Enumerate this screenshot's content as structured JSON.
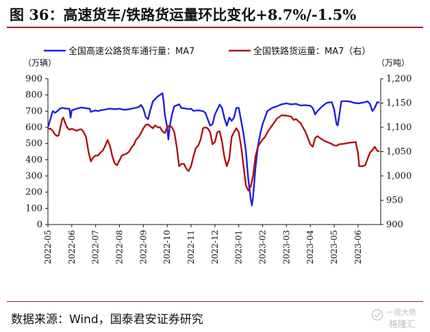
{
  "title": "图 36：高速货车/铁路货运量环比变化+8.7%/-1.5%",
  "source": "数据来源：Wind，国泰君安证券研究",
  "watermark": {
    "line1": "一观大势",
    "line2": "格隆汇"
  },
  "colors": {
    "highway": "#1f1fe0",
    "rail": "#b01010",
    "title_rule": "#9a1b1b"
  },
  "chart_data": {
    "type": "line",
    "legend": {
      "placement": "top",
      "entries": [
        "全国高速公路货车通行量：MA7",
        "全国铁路货运量：MA7（右）"
      ]
    },
    "left_unit": "（万辆）",
    "right_unit": "（万吨）",
    "y_left": {
      "min": 0,
      "max": 900,
      "ticks": [
        0,
        100,
        200,
        300,
        400,
        500,
        600,
        700,
        800,
        900
      ]
    },
    "y_right": {
      "min": 900,
      "max": 1200,
      "ticks": [
        900,
        950,
        1000,
        1050,
        1100,
        1150,
        1200
      ]
    },
    "x_categories": [
      "2022-05",
      "2022-06",
      "2022-07",
      "2022-08",
      "2022-09",
      "2022-10",
      "2022-11",
      "2022-12",
      "2023-01",
      "2023-02",
      "2023-03",
      "2023-04",
      "2023-05",
      "2023-06"
    ],
    "x_range": [
      0,
      13.95
    ],
    "grid": false,
    "series": [
      {
        "name": "全国高速公路货车通行量：MA7",
        "axis": "left",
        "color": "#1f1fe0",
        "points": [
          [
            0.0,
            600
          ],
          [
            0.1,
            650
          ],
          [
            0.2,
            700
          ],
          [
            0.3,
            690
          ],
          [
            0.4,
            700
          ],
          [
            0.5,
            715
          ],
          [
            0.6,
            720
          ],
          [
            0.8,
            715
          ],
          [
            0.9,
            715
          ],
          [
            0.95,
            660
          ],
          [
            1.0,
            705
          ],
          [
            1.1,
            710
          ],
          [
            1.2,
            715
          ],
          [
            1.4,
            722
          ],
          [
            1.6,
            718
          ],
          [
            1.75,
            715
          ],
          [
            1.8,
            695
          ],
          [
            1.9,
            700
          ],
          [
            2.0,
            705
          ],
          [
            2.1,
            700
          ],
          [
            2.2,
            705
          ],
          [
            2.4,
            710
          ],
          [
            2.6,
            715
          ],
          [
            2.8,
            712
          ],
          [
            3.0,
            715
          ],
          [
            3.2,
            708
          ],
          [
            3.4,
            712
          ],
          [
            3.6,
            718
          ],
          [
            3.8,
            725
          ],
          [
            3.9,
            738
          ],
          [
            4.0,
            715
          ],
          [
            4.1,
            665
          ],
          [
            4.2,
            650
          ],
          [
            4.3,
            710
          ],
          [
            4.4,
            760
          ],
          [
            4.6,
            790
          ],
          [
            4.8,
            810
          ],
          [
            4.85,
            760
          ],
          [
            4.9,
            680
          ],
          [
            5.0,
            600
          ],
          [
            5.05,
            525
          ],
          [
            5.1,
            600
          ],
          [
            5.2,
            680
          ],
          [
            5.3,
            730
          ],
          [
            5.5,
            742
          ],
          [
            5.6,
            718
          ],
          [
            5.7,
            718
          ],
          [
            5.9,
            712
          ],
          [
            6.0,
            715
          ],
          [
            6.1,
            702
          ],
          [
            6.3,
            705
          ],
          [
            6.5,
            700
          ],
          [
            6.6,
            690
          ],
          [
            6.8,
            610
          ],
          [
            6.9,
            620
          ],
          [
            7.0,
            680
          ],
          [
            7.2,
            740
          ],
          [
            7.3,
            720
          ],
          [
            7.4,
            655
          ],
          [
            7.5,
            610
          ],
          [
            7.6,
            660
          ],
          [
            7.7,
            640
          ],
          [
            7.8,
            660
          ],
          [
            7.9,
            720
          ],
          [
            8.0,
            720
          ],
          [
            8.1,
            640
          ],
          [
            8.2,
            560
          ],
          [
            8.3,
            450
          ],
          [
            8.4,
            280
          ],
          [
            8.5,
            160
          ],
          [
            8.55,
            118
          ],
          [
            8.6,
            170
          ],
          [
            8.7,
            350
          ],
          [
            8.8,
            480
          ],
          [
            8.9,
            560
          ],
          [
            9.0,
            620
          ],
          [
            9.1,
            660
          ],
          [
            9.2,
            700
          ],
          [
            9.4,
            720
          ],
          [
            9.6,
            730
          ],
          [
            9.8,
            742
          ],
          [
            10.0,
            748
          ],
          [
            10.2,
            742
          ],
          [
            10.4,
            745
          ],
          [
            10.6,
            735
          ],
          [
            10.8,
            737
          ],
          [
            11.0,
            733
          ],
          [
            11.1,
            720
          ],
          [
            11.2,
            680
          ],
          [
            11.3,
            700
          ],
          [
            11.5,
            730
          ],
          [
            11.7,
            752
          ],
          [
            11.9,
            755
          ],
          [
            12.0,
            710
          ],
          [
            12.1,
            620
          ],
          [
            12.15,
            612
          ],
          [
            12.2,
            660
          ],
          [
            12.3,
            760
          ],
          [
            12.5,
            762
          ],
          [
            12.7,
            758
          ],
          [
            12.8,
            752
          ],
          [
            13.0,
            748
          ],
          [
            13.2,
            752
          ],
          [
            13.4,
            760
          ],
          [
            13.5,
            745
          ],
          [
            13.6,
            700
          ],
          [
            13.7,
            720
          ],
          [
            13.8,
            755
          ],
          [
            13.9,
            752
          ]
        ]
      },
      {
        "name": "全国铁路货运量：MA7（右）",
        "axis": "right",
        "color": "#b01010",
        "points": [
          [
            0.0,
            1097
          ],
          [
            0.1,
            1097
          ],
          [
            0.2,
            1093
          ],
          [
            0.3,
            1085
          ],
          [
            0.4,
            1082
          ],
          [
            0.45,
            1084
          ],
          [
            0.5,
            1095
          ],
          [
            0.6,
            1117
          ],
          [
            0.65,
            1120
          ],
          [
            0.7,
            1112
          ],
          [
            0.8,
            1100
          ],
          [
            0.9,
            1095
          ],
          [
            1.0,
            1097
          ],
          [
            1.1,
            1095
          ],
          [
            1.2,
            1093
          ],
          [
            1.3,
            1095
          ],
          [
            1.4,
            1096
          ],
          [
            1.5,
            1090
          ],
          [
            1.6,
            1080
          ],
          [
            1.7,
            1050
          ],
          [
            1.8,
            1030
          ],
          [
            1.9,
            1038
          ],
          [
            2.0,
            1042
          ],
          [
            2.1,
            1042
          ],
          [
            2.2,
            1048
          ],
          [
            2.3,
            1052
          ],
          [
            2.4,
            1062
          ],
          [
            2.5,
            1074
          ],
          [
            2.6,
            1062
          ],
          [
            2.7,
            1040
          ],
          [
            2.8,
            1026
          ],
          [
            2.9,
            1022
          ],
          [
            3.0,
            1032
          ],
          [
            3.1,
            1042
          ],
          [
            3.2,
            1044
          ],
          [
            3.3,
            1046
          ],
          [
            3.4,
            1050
          ],
          [
            3.5,
            1058
          ],
          [
            3.6,
            1064
          ],
          [
            3.7,
            1075
          ],
          [
            3.8,
            1080
          ],
          [
            3.9,
            1088
          ],
          [
            4.0,
            1098
          ],
          [
            4.1,
            1105
          ],
          [
            4.2,
            1106
          ],
          [
            4.3,
            1102
          ],
          [
            4.4,
            1098
          ],
          [
            4.5,
            1104
          ],
          [
            4.6,
            1100
          ],
          [
            4.7,
            1100
          ],
          [
            4.8,
            1092
          ],
          [
            4.9,
            1088
          ],
          [
            5.0,
            1100
          ],
          [
            5.1,
            1104
          ],
          [
            5.2,
            1100
          ],
          [
            5.3,
            1090
          ],
          [
            5.4,
            1060
          ],
          [
            5.5,
            1020
          ],
          [
            5.6,
            1025
          ],
          [
            5.7,
            1025
          ],
          [
            5.8,
            1015
          ],
          [
            5.9,
            1010
          ],
          [
            6.0,
            1020
          ],
          [
            6.1,
            1040
          ],
          [
            6.2,
            1057
          ],
          [
            6.3,
            1062
          ],
          [
            6.4,
            1075
          ],
          [
            6.5,
            1098
          ],
          [
            6.6,
            1100
          ],
          [
            6.7,
            1098
          ],
          [
            6.8,
            1090
          ],
          [
            6.9,
            1065
          ],
          [
            7.0,
            1070
          ],
          [
            7.1,
            1090
          ],
          [
            7.2,
            1092
          ],
          [
            7.3,
            1070
          ],
          [
            7.4,
            1038
          ],
          [
            7.5,
            1020
          ],
          [
            7.6,
            1035
          ],
          [
            7.7,
            1080
          ],
          [
            7.8,
            1090
          ],
          [
            7.9,
            1098
          ],
          [
            8.0,
            1090
          ],
          [
            8.1,
            1060
          ],
          [
            8.2,
            1020
          ],
          [
            8.3,
            980
          ],
          [
            8.4,
            970
          ],
          [
            8.5,
            978
          ],
          [
            8.6,
            1000
          ],
          [
            8.7,
            1040
          ],
          [
            8.8,
            1060
          ],
          [
            8.9,
            1068
          ],
          [
            9.0,
            1075
          ],
          [
            9.1,
            1080
          ],
          [
            9.2,
            1090
          ],
          [
            9.4,
            1104
          ],
          [
            9.6,
            1118
          ],
          [
            9.8,
            1125
          ],
          [
            10.0,
            1124
          ],
          [
            10.2,
            1122
          ],
          [
            10.3,
            1115
          ],
          [
            10.4,
            1117
          ],
          [
            10.6,
            1108
          ],
          [
            10.8,
            1090
          ],
          [
            11.0,
            1065
          ],
          [
            11.1,
            1060
          ],
          [
            11.2,
            1078
          ],
          [
            11.3,
            1082
          ],
          [
            11.4,
            1078
          ],
          [
            11.6,
            1072
          ],
          [
            11.8,
            1068
          ],
          [
            12.0,
            1063
          ],
          [
            12.1,
            1062
          ],
          [
            12.2,
            1065
          ],
          [
            12.4,
            1066
          ],
          [
            12.6,
            1068
          ],
          [
            12.8,
            1069
          ],
          [
            12.9,
            1070
          ],
          [
            13.0,
            1047
          ],
          [
            13.05,
            1020
          ],
          [
            13.2,
            1020
          ],
          [
            13.3,
            1022
          ],
          [
            13.4,
            1035
          ],
          [
            13.5,
            1048
          ],
          [
            13.6,
            1053
          ],
          [
            13.7,
            1060
          ],
          [
            13.8,
            1052
          ],
          [
            13.9,
            1050
          ]
        ]
      }
    ]
  }
}
